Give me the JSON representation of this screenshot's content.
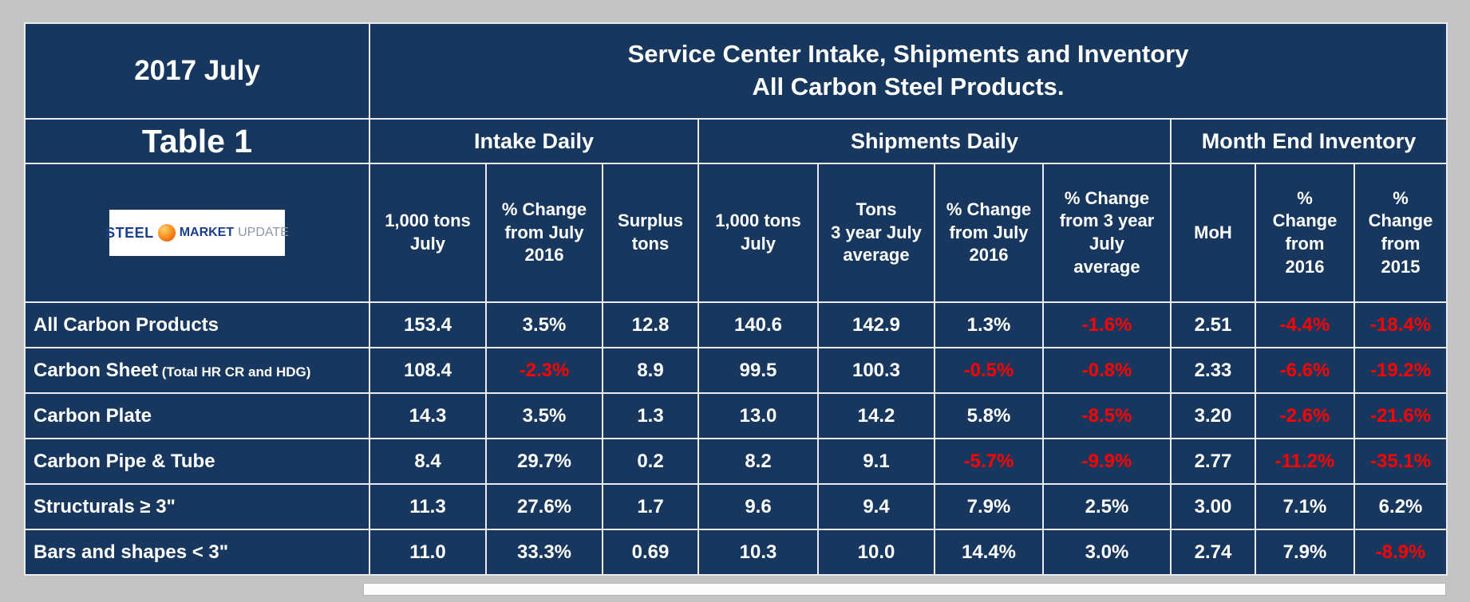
{
  "corner": {
    "period": "2017 July",
    "table_label": "Table 1"
  },
  "title": {
    "line1": "Service Center Intake, Shipments and Inventory",
    "line2": "All Carbon Steel Products."
  },
  "logo": {
    "steel": "STEEL",
    "market": "MARKET",
    "update": "UPDATE"
  },
  "colors": {
    "table_background": "#17375e",
    "accent_yellow": "#ffff00",
    "negative_red": "#ff0000",
    "grid_line": "#e9ecef",
    "page_background": "#c4c4c4"
  },
  "chart_data": {
    "type": "table",
    "title": "Service Center Intake, Shipments and Inventory — All Carbon Steel Products.",
    "period": "2017 July",
    "table_label": "Table 1",
    "column_groups": [
      {
        "label": "Intake Daily",
        "span": 3
      },
      {
        "label": "Shipments Daily",
        "span": 4
      },
      {
        "label": "Month End Inventory",
        "span": 3
      }
    ],
    "columns": [
      "1,000 tons\nJuly",
      "% Change\nfrom July\n2016",
      "Surplus\ntons",
      "1,000 tons\nJuly",
      "Tons\n3 year July\naverage",
      "% Change\nfrom July\n2016",
      "% Change\nfrom 3 year\nJuly\naverage",
      "MoH",
      "%\nChange\nfrom\n2016",
      "%\nChange\nfrom\n2015"
    ],
    "rows": [
      {
        "label": "All Carbon Products",
        "note": "",
        "values": [
          "153.4",
          "3.5%",
          "12.8",
          "140.6",
          "142.9",
          "1.3%",
          "-1.6%",
          "2.51",
          "-4.4%",
          "-18.4%"
        ]
      },
      {
        "label": "Carbon Sheet",
        "note": "(Total HR CR and HDG)",
        "values": [
          "108.4",
          "-2.3%",
          "8.9",
          "99.5",
          "100.3",
          "-0.5%",
          "-0.8%",
          "2.33",
          "-6.6%",
          "-19.2%"
        ]
      },
      {
        "label": "Carbon Plate",
        "note": "",
        "values": [
          "14.3",
          "3.5%",
          "1.3",
          "13.0",
          "14.2",
          "5.8%",
          "-8.5%",
          "3.20",
          "-2.6%",
          "-21.6%"
        ]
      },
      {
        "label": "Carbon Pipe & Tube",
        "note": "",
        "values": [
          "8.4",
          "29.7%",
          "0.2",
          "8.2",
          "9.1",
          "-5.7%",
          "-9.9%",
          "2.77",
          "-11.2%",
          "-35.1%"
        ]
      },
      {
        "label": "Structurals ≥ 3\"",
        "note": "",
        "values": [
          "11.3",
          "27.6%",
          "1.7",
          "9.6",
          "9.4",
          "7.9%",
          "2.5%",
          "3.00",
          "7.1%",
          "6.2%"
        ]
      },
      {
        "label": "Bars and shapes < 3\"",
        "note": "",
        "values": [
          "11.0",
          "33.3%",
          "0.69",
          "10.3",
          "10.0",
          "14.4%",
          "3.0%",
          "2.74",
          "7.9%",
          "-8.9%"
        ]
      }
    ]
  }
}
